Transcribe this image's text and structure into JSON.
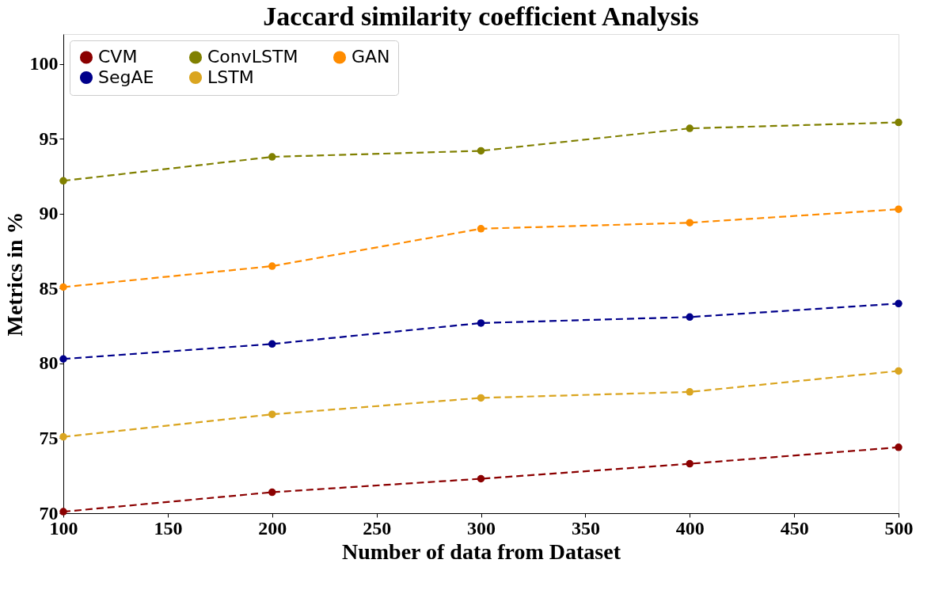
{
  "chart_data": {
    "type": "line",
    "title": "Jaccard similarity coefficient Analysis",
    "xlabel": "Number of data from Dataset",
    "ylabel": "Metrics in %",
    "x": [
      100,
      200,
      300,
      400,
      500
    ],
    "series": [
      {
        "name": "CVM",
        "color": "#8b0000",
        "values": [
          70.1,
          71.4,
          72.3,
          73.3,
          74.4
        ]
      },
      {
        "name": "LSTM",
        "color": "#daa520",
        "values": [
          75.1,
          76.6,
          77.7,
          78.1,
          79.5
        ]
      },
      {
        "name": "SegAE",
        "color": "#00008b",
        "values": [
          80.3,
          81.3,
          82.7,
          83.1,
          84.0
        ]
      },
      {
        "name": "GAN",
        "color": "#ff8c00",
        "values": [
          85.1,
          86.5,
          89.0,
          89.4,
          90.3
        ]
      },
      {
        "name": "ConvLSTM",
        "color": "#808000",
        "values": [
          92.2,
          93.8,
          94.2,
          95.7,
          96.1
        ]
      }
    ],
    "xlim": [
      100,
      500
    ],
    "xticks": [
      100,
      150,
      200,
      250,
      300,
      350,
      400,
      450,
      500
    ],
    "ylim": [
      70,
      102
    ],
    "yticks": [
      70,
      75,
      80,
      85,
      90,
      95,
      100
    ],
    "grid": false,
    "legend": "top left",
    "marker": "circle",
    "line_style": "dashed"
  }
}
